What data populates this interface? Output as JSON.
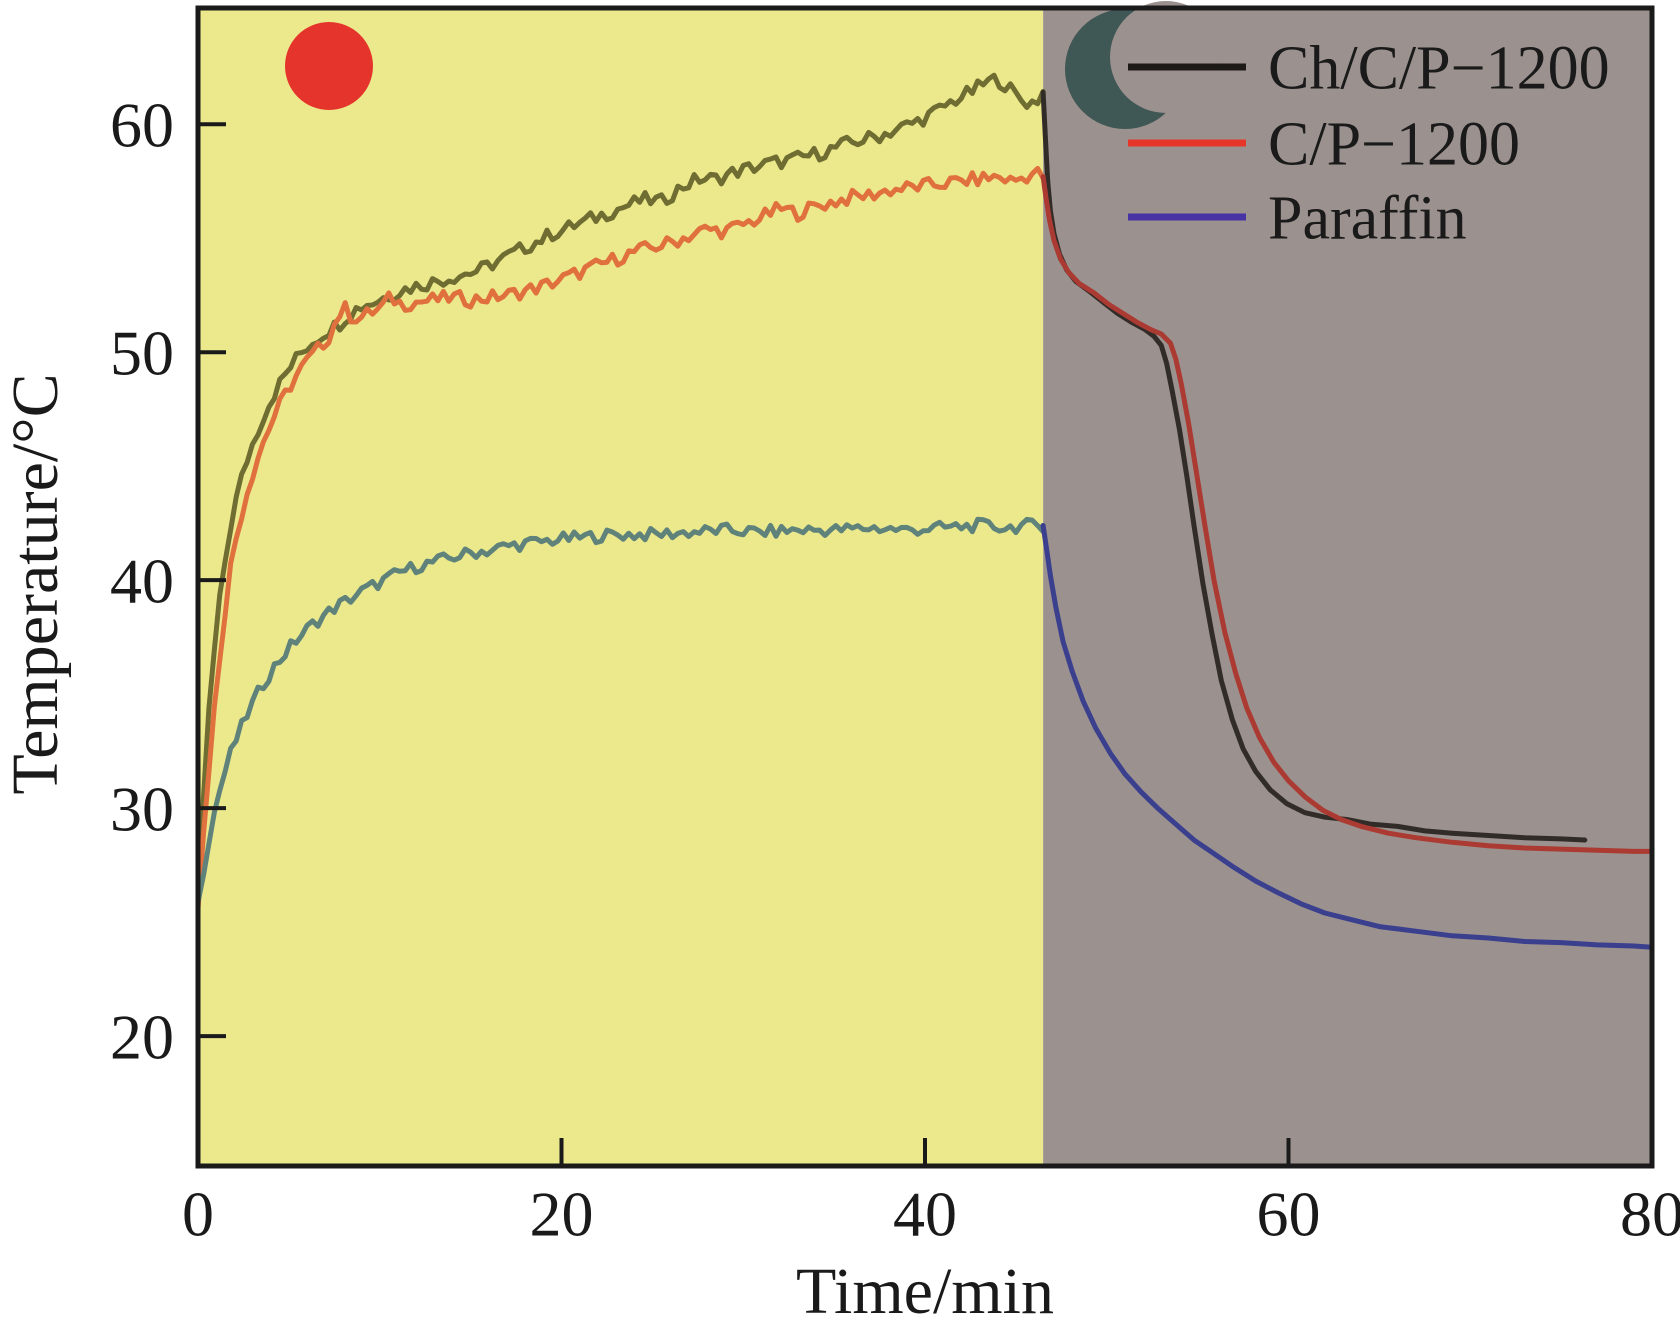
{
  "chart_data": {
    "type": "line",
    "title": "",
    "xlabel": "Time/min",
    "ylabel": "Temperature/°C",
    "x_ticks": [
      0,
      20,
      40,
      60,
      80
    ],
    "y_ticks": [
      20,
      30,
      40,
      50,
      60
    ],
    "xlim": [
      0,
      80
    ],
    "ylim": [
      14.3,
      65.1
    ],
    "grid": false,
    "axis_color": "#1a1a1a",
    "legend_position": "top-right",
    "regions": [
      {
        "name": "light-on-phase",
        "x_start": 0,
        "x_end": 46.5,
        "color": "#ece98c",
        "icon": "sun-icon",
        "icon_color": "#e5342c"
      },
      {
        "name": "light-off-phase",
        "x_start": 46.5,
        "x_end": 80,
        "color": "#9b918f",
        "icon": "moon-icon",
        "icon_color": "#3f5755"
      }
    ],
    "series": [
      {
        "name": "Ch/C/P−1200",
        "legend_color": "#1c1917",
        "color_light_phase": "#6f6d32",
        "color_dark_phase": "#322c28",
        "noise_amplitude": 0.32,
        "points_light": [
          [
            0,
            26.3
          ],
          [
            0.3,
            30.5
          ],
          [
            0.6,
            34.2
          ],
          [
            1,
            37.8
          ],
          [
            1.4,
            40.4
          ],
          [
            1.8,
            42.4
          ],
          [
            2.2,
            43.9
          ],
          [
            2.7,
            45.3
          ],
          [
            3.2,
            46.4
          ],
          [
            3.7,
            47.4
          ],
          [
            4.2,
            48.2
          ],
          [
            4.7,
            48.9
          ],
          [
            5.2,
            49.5
          ],
          [
            5.7,
            50.0
          ],
          [
            6.2,
            50.4
          ],
          [
            6.7,
            50.7
          ],
          [
            7.2,
            51.0
          ],
          [
            7.7,
            51.2
          ],
          [
            8.2,
            51.6
          ],
          [
            8.7,
            51.9
          ],
          [
            9.2,
            52.1
          ],
          [
            9.7,
            52.2
          ],
          [
            10.5,
            52.5
          ],
          [
            11.5,
            52.8
          ],
          [
            12.5,
            53.0
          ],
          [
            13.5,
            53.2
          ],
          [
            14.5,
            53.4
          ],
          [
            15.5,
            53.6
          ],
          [
            16.5,
            54.0
          ],
          [
            17.5,
            54.4
          ],
          [
            18.5,
            54.8
          ],
          [
            19.5,
            55.2
          ],
          [
            20.5,
            55.5
          ],
          [
            21.5,
            55.8
          ],
          [
            22.5,
            56.1
          ],
          [
            23.5,
            56.4
          ],
          [
            24.5,
            56.7
          ],
          [
            25.5,
            56.6
          ],
          [
            26.5,
            57.2
          ],
          [
            27.5,
            57.6
          ],
          [
            28.5,
            57.6
          ],
          [
            29.5,
            57.9
          ],
          [
            30.5,
            58.1
          ],
          [
            31.5,
            58.3
          ],
          [
            32.5,
            58.4
          ],
          [
            33.5,
            58.6
          ],
          [
            34.5,
            58.8
          ],
          [
            35.5,
            59.1
          ],
          [
            36.5,
            59.3
          ],
          [
            37.5,
            59.5
          ],
          [
            38.5,
            59.8
          ],
          [
            39.5,
            60.1
          ],
          [
            40.5,
            60.5
          ],
          [
            41.5,
            61.0
          ],
          [
            42.5,
            61.4
          ],
          [
            43.3,
            61.8
          ],
          [
            44,
            62.0
          ],
          [
            44.6,
            61.6
          ],
          [
            45.2,
            61.1
          ],
          [
            45.8,
            60.9
          ],
          [
            46.2,
            61.1
          ],
          [
            46.5,
            61.4
          ]
        ],
        "points_dark": [
          [
            46.5,
            61.4
          ],
          [
            46.62,
            59.5
          ],
          [
            46.75,
            57.5
          ],
          [
            46.9,
            56.2
          ],
          [
            47.1,
            55.2
          ],
          [
            47.4,
            54.3
          ],
          [
            47.8,
            53.6
          ],
          [
            48.3,
            53.1
          ],
          [
            49,
            52.7
          ],
          [
            49.8,
            52.2
          ],
          [
            50.6,
            51.7
          ],
          [
            51.4,
            51.3
          ],
          [
            52.1,
            51.0
          ],
          [
            52.6,
            50.7
          ],
          [
            53.0,
            50.3
          ],
          [
            53.3,
            49.5
          ],
          [
            53.6,
            48.3
          ],
          [
            54.0,
            46.6
          ],
          [
            54.4,
            44.6
          ],
          [
            54.8,
            42.4
          ],
          [
            55.3,
            39.8
          ],
          [
            55.8,
            37.6
          ],
          [
            56.3,
            35.6
          ],
          [
            56.9,
            33.9
          ],
          [
            57.5,
            32.6
          ],
          [
            58.2,
            31.6
          ],
          [
            59.0,
            30.8
          ],
          [
            59.9,
            30.2
          ],
          [
            60.9,
            29.8
          ],
          [
            62.0,
            29.6
          ],
          [
            63.2,
            29.5
          ],
          [
            64.5,
            29.3
          ],
          [
            66,
            29.2
          ],
          [
            67.5,
            29.0
          ],
          [
            69,
            28.9
          ],
          [
            71,
            28.8
          ],
          [
            73,
            28.7
          ],
          [
            75,
            28.65
          ],
          [
            76.3,
            28.6
          ]
        ]
      },
      {
        "name": "C/P−1200",
        "legend_color": "#e73629",
        "color_light_phase": "#e0713f",
        "color_dark_phase": "#ab3a32",
        "noise_amplitude": 0.32,
        "points_light": [
          [
            0,
            25.8
          ],
          [
            0.3,
            28.8
          ],
          [
            0.6,
            31.8
          ],
          [
            1,
            35.2
          ],
          [
            1.4,
            38.2
          ],
          [
            1.8,
            40.6
          ],
          [
            2.2,
            42.3
          ],
          [
            2.7,
            43.9
          ],
          [
            3.2,
            45.2
          ],
          [
            3.7,
            46.3
          ],
          [
            4.2,
            47.2
          ],
          [
            4.7,
            48.0
          ],
          [
            5.2,
            48.7
          ],
          [
            5.7,
            49.3
          ],
          [
            6.2,
            49.8
          ],
          [
            6.7,
            50.2
          ],
          [
            7.2,
            50.7
          ],
          [
            7.6,
            51.4
          ],
          [
            8.0,
            52.0
          ],
          [
            8.4,
            51.6
          ],
          [
            8.9,
            51.5
          ],
          [
            9.4,
            51.7
          ],
          [
            10,
            51.9
          ],
          [
            10.6,
            52.4
          ],
          [
            11.2,
            52.1
          ],
          [
            12,
            52.2
          ],
          [
            13,
            52.3
          ],
          [
            14,
            52.4
          ],
          [
            15,
            52.3
          ],
          [
            16,
            52.4
          ],
          [
            17,
            52.5
          ],
          [
            18,
            52.7
          ],
          [
            19,
            52.9
          ],
          [
            20,
            53.2
          ],
          [
            21,
            53.5
          ],
          [
            22,
            53.8
          ],
          [
            23,
            54.1
          ],
          [
            24,
            54.4
          ],
          [
            25,
            54.6
          ],
          [
            26,
            54.8
          ],
          [
            27,
            55.1
          ],
          [
            28,
            55.4
          ],
          [
            29,
            55.3
          ],
          [
            30,
            55.6
          ],
          [
            31,
            55.9
          ],
          [
            32,
            56.3
          ],
          [
            33,
            56.1
          ],
          [
            34,
            56.4
          ],
          [
            35,
            56.6
          ],
          [
            36,
            56.8
          ],
          [
            37,
            56.9
          ],
          [
            38,
            57.1
          ],
          [
            39,
            57.2
          ],
          [
            40,
            57.3
          ],
          [
            41,
            57.4
          ],
          [
            42,
            57.5
          ],
          [
            43,
            57.6
          ],
          [
            44,
            57.7
          ],
          [
            44.8,
            57.5
          ],
          [
            45.5,
            57.7
          ],
          [
            46.1,
            57.9
          ],
          [
            46.5,
            57.7
          ]
        ],
        "points_dark": [
          [
            46.5,
            57.7
          ],
          [
            46.65,
            56.8
          ],
          [
            46.85,
            55.8
          ],
          [
            47.1,
            54.9
          ],
          [
            47.45,
            54.1
          ],
          [
            47.9,
            53.5
          ],
          [
            48.5,
            53.0
          ],
          [
            49.3,
            52.6
          ],
          [
            50.1,
            52.1
          ],
          [
            50.9,
            51.7
          ],
          [
            51.7,
            51.3
          ],
          [
            52.4,
            51.0
          ],
          [
            53.0,
            50.8
          ],
          [
            53.5,
            50.4
          ],
          [
            53.8,
            49.7
          ],
          [
            54.1,
            48.6
          ],
          [
            54.5,
            46.9
          ],
          [
            54.9,
            44.9
          ],
          [
            55.4,
            42.4
          ],
          [
            55.9,
            40.0
          ],
          [
            56.5,
            37.7
          ],
          [
            57.1,
            35.9
          ],
          [
            57.7,
            34.4
          ],
          [
            58.4,
            33.1
          ],
          [
            59.2,
            32.0
          ],
          [
            60.0,
            31.2
          ],
          [
            60.9,
            30.5
          ],
          [
            61.9,
            29.9
          ],
          [
            62.9,
            29.5
          ],
          [
            64,
            29.2
          ],
          [
            65.5,
            28.9
          ],
          [
            67,
            28.7
          ],
          [
            69,
            28.5
          ],
          [
            71,
            28.35
          ],
          [
            73,
            28.25
          ],
          [
            75,
            28.2
          ],
          [
            77,
            28.15
          ],
          [
            79,
            28.1
          ],
          [
            80,
            28.1
          ]
        ]
      },
      {
        "name": "Paraffin",
        "legend_color": "#4733a3",
        "color_light_phase": "#5f837b",
        "color_dark_phase": "#3a3f8e",
        "noise_amplitude": 0.28,
        "points_light": [
          [
            0,
            25.8
          ],
          [
            0.3,
            27.3
          ],
          [
            0.6,
            28.7
          ],
          [
            1,
            30.2
          ],
          [
            1.4,
            31.4
          ],
          [
            1.8,
            32.4
          ],
          [
            2.2,
            33.2
          ],
          [
            2.7,
            34.1
          ],
          [
            3.2,
            34.9
          ],
          [
            3.7,
            35.6
          ],
          [
            4.2,
            36.2
          ],
          [
            4.7,
            36.7
          ],
          [
            5.2,
            37.2
          ],
          [
            5.7,
            37.6
          ],
          [
            6.2,
            38.0
          ],
          [
            6.7,
            38.3
          ],
          [
            7.2,
            38.6
          ],
          [
            7.7,
            38.9
          ],
          [
            8.2,
            39.1
          ],
          [
            9,
            39.5
          ],
          [
            10,
            39.9
          ],
          [
            11,
            40.3
          ],
          [
            12,
            40.6
          ],
          [
            13,
            40.8
          ],
          [
            14,
            41.0
          ],
          [
            15,
            41.2
          ],
          [
            16,
            41.3
          ],
          [
            17,
            41.5
          ],
          [
            18,
            41.6
          ],
          [
            19,
            41.7
          ],
          [
            20,
            41.8
          ],
          [
            21.5,
            41.9
          ],
          [
            23,
            42.0
          ],
          [
            25,
            42.0
          ],
          [
            27,
            42.1
          ],
          [
            29,
            42.2
          ],
          [
            31,
            42.1
          ],
          [
            33,
            42.2
          ],
          [
            35,
            42.2
          ],
          [
            37,
            42.3
          ],
          [
            39,
            42.2
          ],
          [
            41,
            42.3
          ],
          [
            43,
            42.4
          ],
          [
            44.5,
            42.3
          ],
          [
            45.5,
            42.4
          ],
          [
            46.5,
            42.4
          ]
        ],
        "points_dark": [
          [
            46.5,
            42.4
          ],
          [
            46.7,
            41.3
          ],
          [
            46.9,
            40.2
          ],
          [
            47.2,
            38.8
          ],
          [
            47.6,
            37.3
          ],
          [
            48.1,
            36.0
          ],
          [
            48.7,
            34.7
          ],
          [
            49.4,
            33.5
          ],
          [
            50.2,
            32.4
          ],
          [
            51.0,
            31.5
          ],
          [
            51.9,
            30.7
          ],
          [
            52.8,
            30.0
          ],
          [
            53.8,
            29.3
          ],
          [
            54.8,
            28.6
          ],
          [
            55.9,
            28.0
          ],
          [
            57.0,
            27.4
          ],
          [
            58.2,
            26.8
          ],
          [
            59.4,
            26.3
          ],
          [
            60.7,
            25.8
          ],
          [
            62.0,
            25.4
          ],
          [
            63.5,
            25.1
          ],
          [
            65,
            24.8
          ],
          [
            67,
            24.6
          ],
          [
            69,
            24.4
          ],
          [
            71,
            24.3
          ],
          [
            73,
            24.15
          ],
          [
            75,
            24.1
          ],
          [
            77,
            24.0
          ],
          [
            79,
            23.95
          ],
          [
            80,
            23.9
          ]
        ]
      }
    ]
  },
  "legend": {
    "entries": [
      {
        "label": "Ch/C/P−1200",
        "swatch_color": "#1c1917"
      },
      {
        "label": "C/P−1200",
        "swatch_color": "#e73629"
      },
      {
        "label": "Paraffin",
        "swatch_color": "#4733a3"
      }
    ]
  }
}
